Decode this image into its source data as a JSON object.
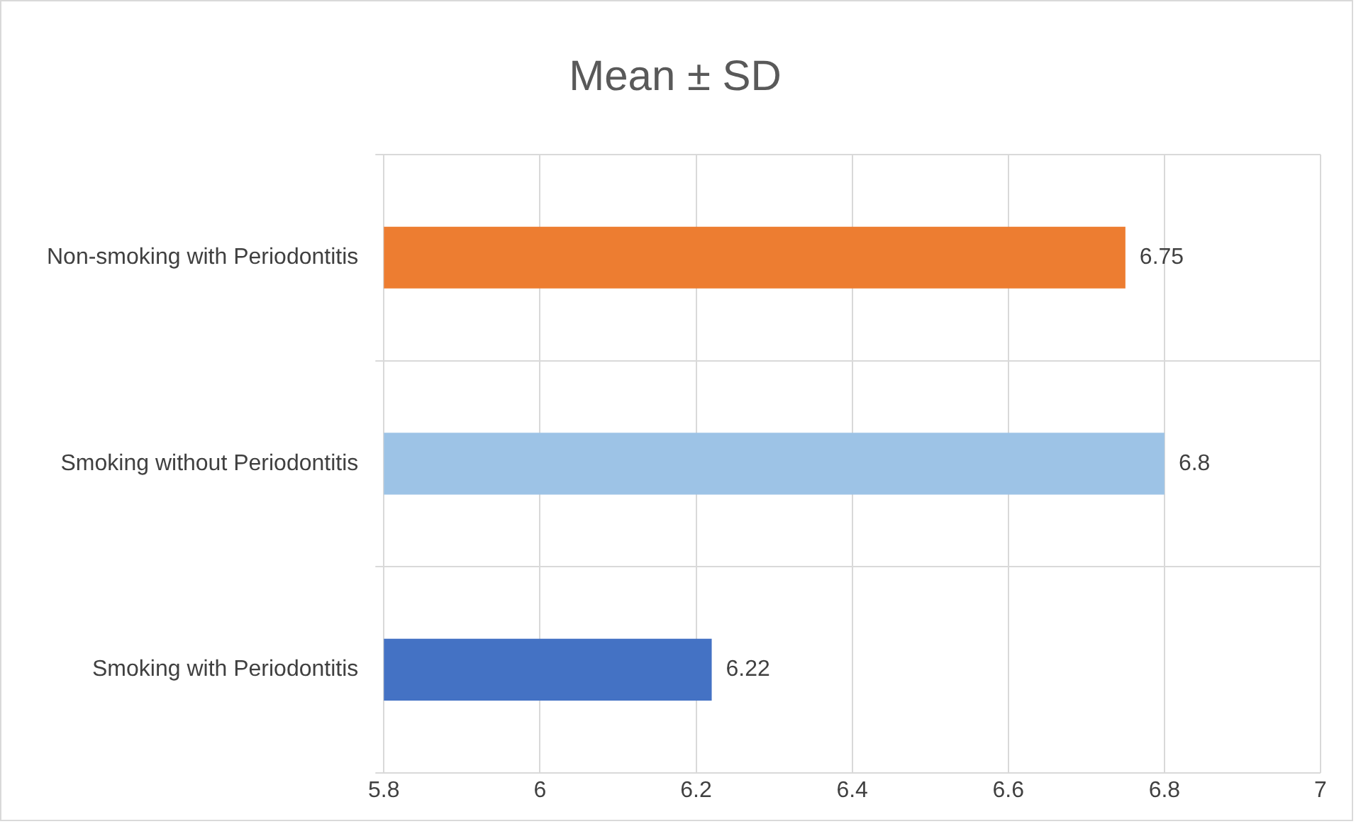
{
  "chart_data": {
    "type": "bar",
    "orientation": "horizontal",
    "title": "Mean ± SD",
    "categories": [
      "Non-smoking with Periodontitis",
      "Smoking without Periodontitis",
      "Smoking with Periodontitis"
    ],
    "values": [
      6.75,
      6.8,
      6.22
    ],
    "colors": [
      "#ed7d31",
      "#9dc3e6",
      "#4472c4"
    ],
    "xlim": [
      5.8,
      7
    ],
    "xticks": [
      5.8,
      6,
      6.2,
      6.4,
      6.6,
      6.8,
      7
    ],
    "grid": true,
    "data_labels": true,
    "legend": false
  }
}
